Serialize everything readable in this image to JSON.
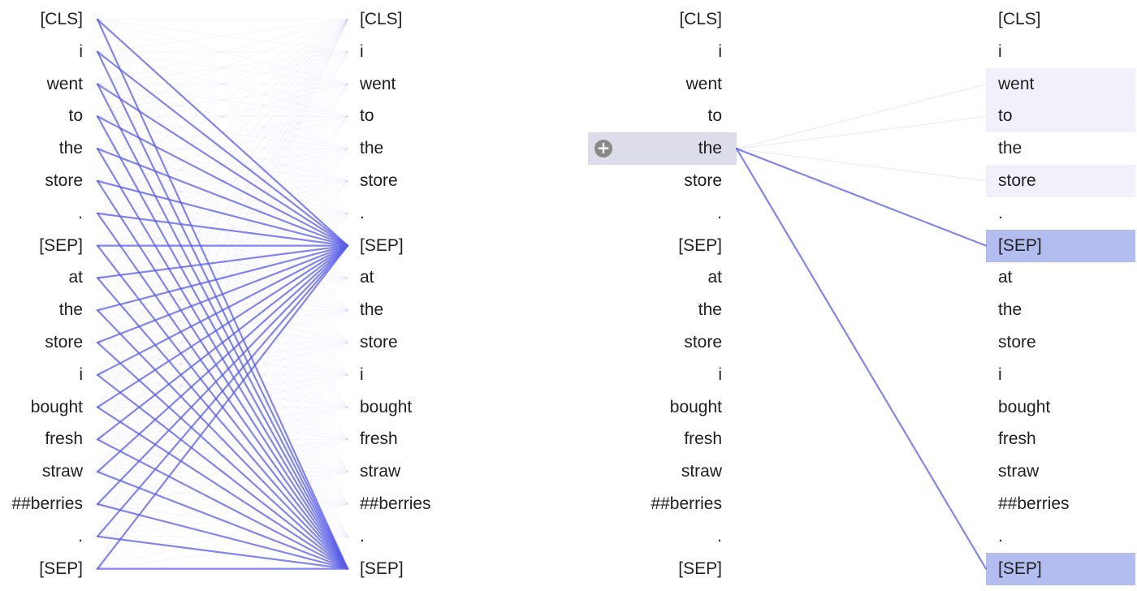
{
  "tokens": [
    "[CLS]",
    "i",
    "went",
    "to",
    "the",
    "store",
    ".",
    "[SEP]",
    "at",
    "the",
    "store",
    "i",
    "bought",
    "fresh",
    "straw",
    "##berries",
    ".",
    "[SEP]"
  ],
  "colors": {
    "line": "#5a5ee6",
    "selected_bg": "#dcdcea",
    "target_highlight": "#b3bdf0",
    "faint_highlight": "#eef0fb",
    "icon": "#888888"
  },
  "head_view_left": {
    "name": "all-heads",
    "strong_targets": [
      7,
      17
    ]
  },
  "head_view_right": {
    "name": "single-token",
    "selected_index": 4,
    "selected_icon": "plus-circle-icon",
    "attention": [
      {
        "to": 7,
        "weight": 0.75
      },
      {
        "to": 17,
        "weight": 0.75
      },
      {
        "to": 2,
        "weight": 0.06
      },
      {
        "to": 3,
        "weight": 0.05
      },
      {
        "to": 5,
        "weight": 0.04
      }
    ]
  }
}
